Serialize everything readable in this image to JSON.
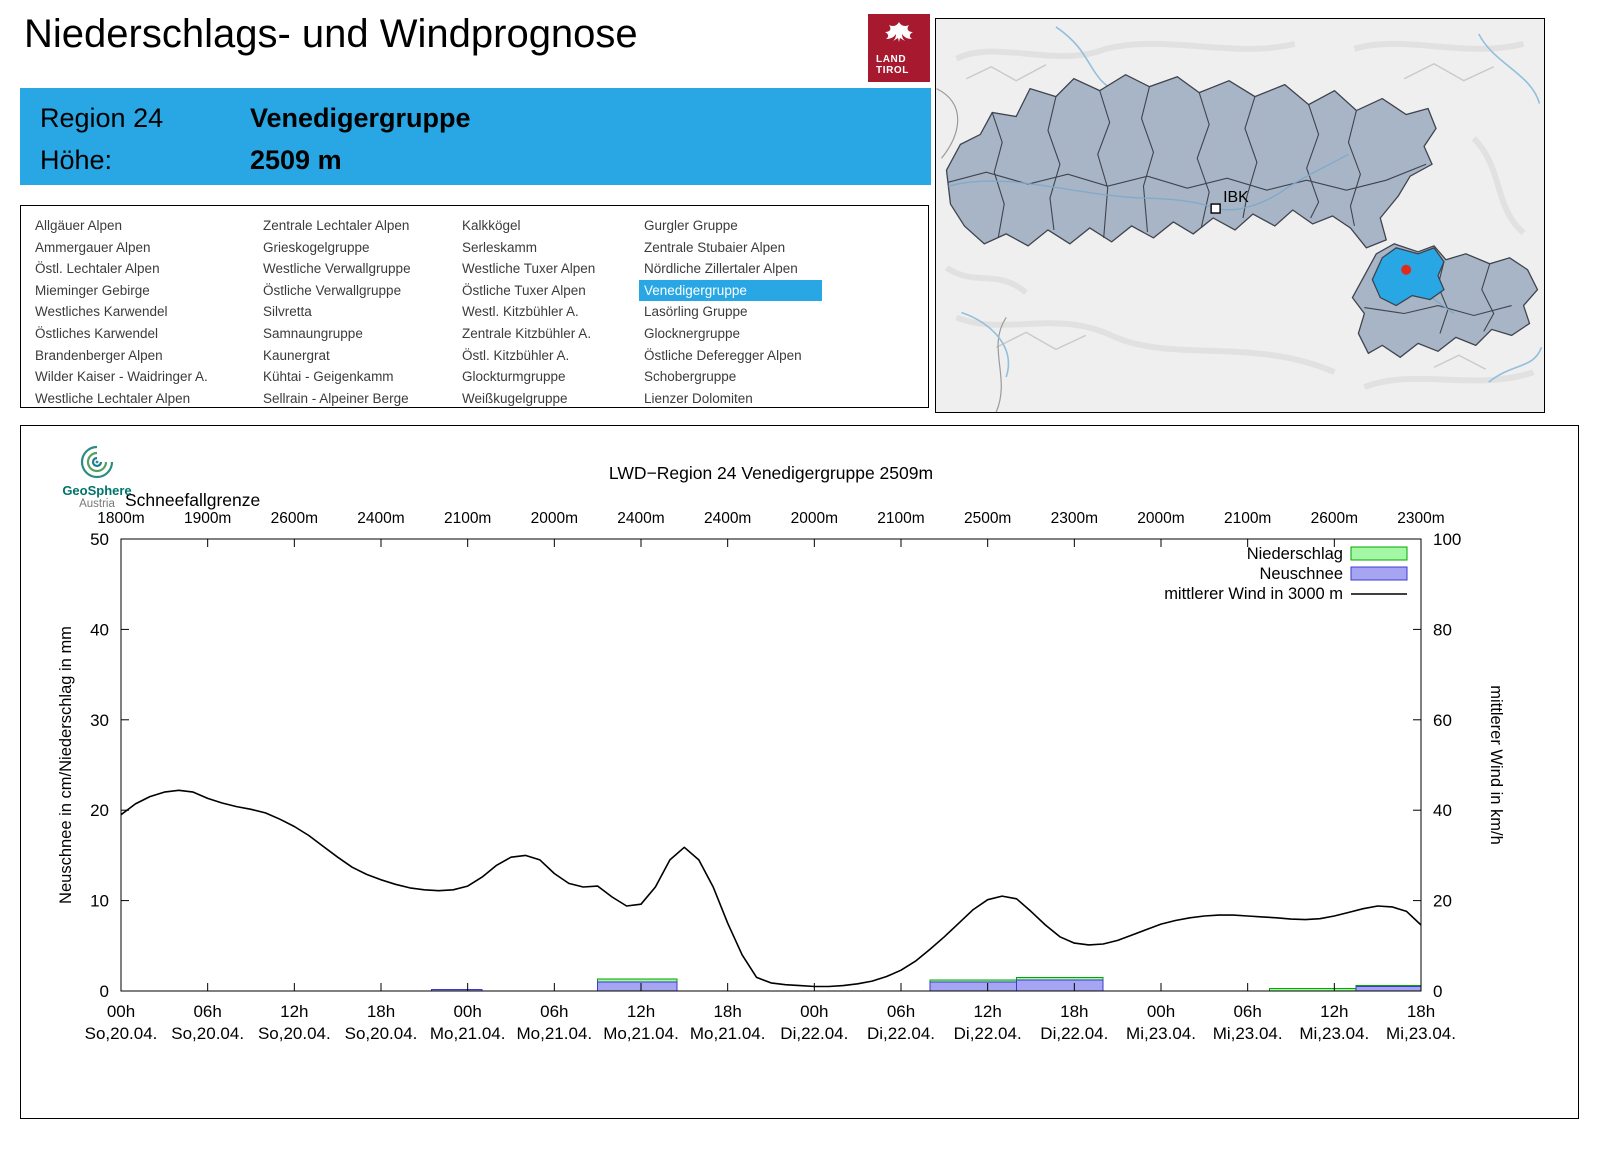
{
  "page": {
    "title": "Niederschlags- und Windprognose"
  },
  "logo": {
    "line1": "LAND",
    "line2": "TIROL",
    "color": "#A6192E"
  },
  "region_header": {
    "region_label": "Region 24",
    "region_name": "Venedigergruppe",
    "elevation_label": "Höhe:",
    "elevation_value": "2509 m",
    "accent_color": "#29A7E4"
  },
  "map": {
    "marker_label": "IBK",
    "selected_region": "Venedigergruppe",
    "selected_color": "#29A7E4",
    "marker_dot_color": "#E02A1A"
  },
  "region_list": {
    "selected": "Venedigergruppe",
    "columns": [
      [
        "Allgäuer Alpen",
        "Ammergauer Alpen",
        "Östl. Lechtaler Alpen",
        "Mieminger Gebirge",
        "Westliches Karwendel",
        "Östliches Karwendel",
        "Brandenberger Alpen",
        "Wilder Kaiser - Waidringer A.",
        "Westliche Lechtaler Alpen"
      ],
      [
        "Zentrale Lechtaler Alpen",
        "Grieskogelgruppe",
        "Westliche Verwallgruppe",
        "Östliche Verwallgruppe",
        "Silvretta",
        "Samnaungruppe",
        "Kaunergrat",
        "Kühtai - Geigenkamm",
        "Sellrain - Alpeiner Berge"
      ],
      [
        "Kalkkögel",
        "Serleskamm",
        "Westliche Tuxer Alpen",
        "Östliche Tuxer Alpen",
        "Westl. Kitzbühler A.",
        "Zentrale Kitzbühler A.",
        "Östl. Kitzbühler A.",
        "Glockturmgruppe",
        "Weißkugelgruppe"
      ],
      [
        "Gurgler Gruppe",
        "Zentrale Stubaier Alpen",
        "Nördliche Zillertaler Alpen",
        "Venedigergruppe",
        "Lasörling Gruppe",
        "Glocknergruppe",
        "Östliche Deferegger Alpen",
        "Schobergruppe",
        "Lienzer Dolomiten"
      ]
    ]
  },
  "provider": {
    "name_line1": "GeoSphere",
    "name_line2": "Austria"
  },
  "chart_data": {
    "type": "line+bar",
    "title": "LWD−Region 24 Venedigergruppe 2509m",
    "x_unit": "hours from So 20.04. 00h",
    "x_range_hours": [
      0,
      90
    ],
    "x_tick_hours": [
      0,
      6,
      12,
      18,
      24,
      30,
      36,
      42,
      48,
      54,
      60,
      66,
      72,
      78,
      84,
      90
    ],
    "x_tick_time_labels": [
      "00h",
      "06h",
      "12h",
      "18h",
      "00h",
      "06h",
      "12h",
      "18h",
      "00h",
      "06h",
      "12h",
      "18h",
      "00h",
      "06h",
      "12h",
      "18h"
    ],
    "x_tick_date_labels": [
      "So,20.04.",
      "So,20.04.",
      "So,20.04.",
      "So,20.04.",
      "Mo,21.04.",
      "Mo,21.04.",
      "Mo,21.04.",
      "Mo,21.04.",
      "Di,22.04.",
      "Di,22.04.",
      "Di,22.04.",
      "Di,22.04.",
      "Mi,23.04.",
      "Mi,23.04.",
      "Mi,23.04.",
      "Mi,23.04."
    ],
    "ylabel_left": "Neuschnee in cm/Niederschlag in mm",
    "ylabel_right": "mittlerer Wind in km/h",
    "ylim_left": [
      0,
      50
    ],
    "ylim_right": [
      0,
      100
    ],
    "y_left_ticks": [
      0,
      10,
      20,
      30,
      40,
      50
    ],
    "y_right_ticks": [
      0,
      20,
      40,
      60,
      80,
      100
    ],
    "schneefallgrenze": {
      "label": "Schneefallgrenze",
      "unit": "m",
      "values_m": [
        1800,
        1900,
        2600,
        2400,
        2100,
        2000,
        2400,
        2400,
        2000,
        2100,
        2500,
        2300,
        2000,
        2100,
        2600,
        2300
      ]
    },
    "legend": [
      "Niederschlag",
      "Neuschnee",
      "mittlerer Wind in 3000 m"
    ],
    "series": [
      {
        "name": "Niederschlag",
        "type": "bar",
        "axis": "left",
        "unit": "mm",
        "color_fill": "#A4F7A4",
        "color_stroke": "#00A800",
        "segments": [
          {
            "from_h": 33,
            "to_h": 38.5,
            "value": 1.3
          },
          {
            "from_h": 56,
            "to_h": 62,
            "value": 1.2
          },
          {
            "from_h": 62,
            "to_h": 68,
            "value": 1.5
          },
          {
            "from_h": 79.5,
            "to_h": 85.5,
            "value": 0.3
          },
          {
            "from_h": 85.5,
            "to_h": 90,
            "value": 0.6
          }
        ]
      },
      {
        "name": "Neuschnee",
        "type": "bar",
        "axis": "left",
        "unit": "cm",
        "color_fill": "#A5A5F2",
        "color_stroke": "#3B3BD1",
        "segments": [
          {
            "from_h": 21.5,
            "to_h": 25,
            "value": 0.15
          },
          {
            "from_h": 33,
            "to_h": 38.5,
            "value": 1.0
          },
          {
            "from_h": 56,
            "to_h": 62,
            "value": 1.0
          },
          {
            "from_h": 62,
            "to_h": 68,
            "value": 1.2
          },
          {
            "from_h": 85.5,
            "to_h": 90,
            "value": 0.5
          }
        ]
      },
      {
        "name": "mittlerer Wind in 3000 m",
        "type": "line",
        "axis": "right",
        "unit": "km/h",
        "color": "#000000",
        "x_step_hours": 1,
        "values_kmh": [
          39,
          41.4,
          43,
          44,
          44.4,
          44,
          42.6,
          41.6,
          40.8,
          40.2,
          39.4,
          38,
          36.4,
          34.4,
          32,
          29.6,
          27.4,
          25.8,
          24.6,
          23.6,
          22.8,
          22.4,
          22.2,
          22.4,
          23.2,
          25.2,
          27.8,
          29.6,
          30,
          29,
          26,
          23.8,
          23,
          23.2,
          20.8,
          18.8,
          19.2,
          23,
          29,
          31.8,
          29,
          23,
          15,
          8,
          3,
          1.8,
          1.4,
          1.2,
          1,
          1,
          1.2,
          1.6,
          2.2,
          3.2,
          4.6,
          6.6,
          9.2,
          12,
          15,
          18,
          20.2,
          21,
          20.4,
          17.6,
          14.6,
          12,
          10.6,
          10.2,
          10.4,
          11.2,
          12.4,
          13.6,
          14.8,
          15.6,
          16.2,
          16.6,
          16.8,
          16.8,
          16.6,
          16.4,
          16.2,
          15.9,
          15.8,
          16,
          16.6,
          17.4,
          18.2,
          18.8,
          18.6,
          17.6,
          14.6
        ]
      }
    ]
  }
}
